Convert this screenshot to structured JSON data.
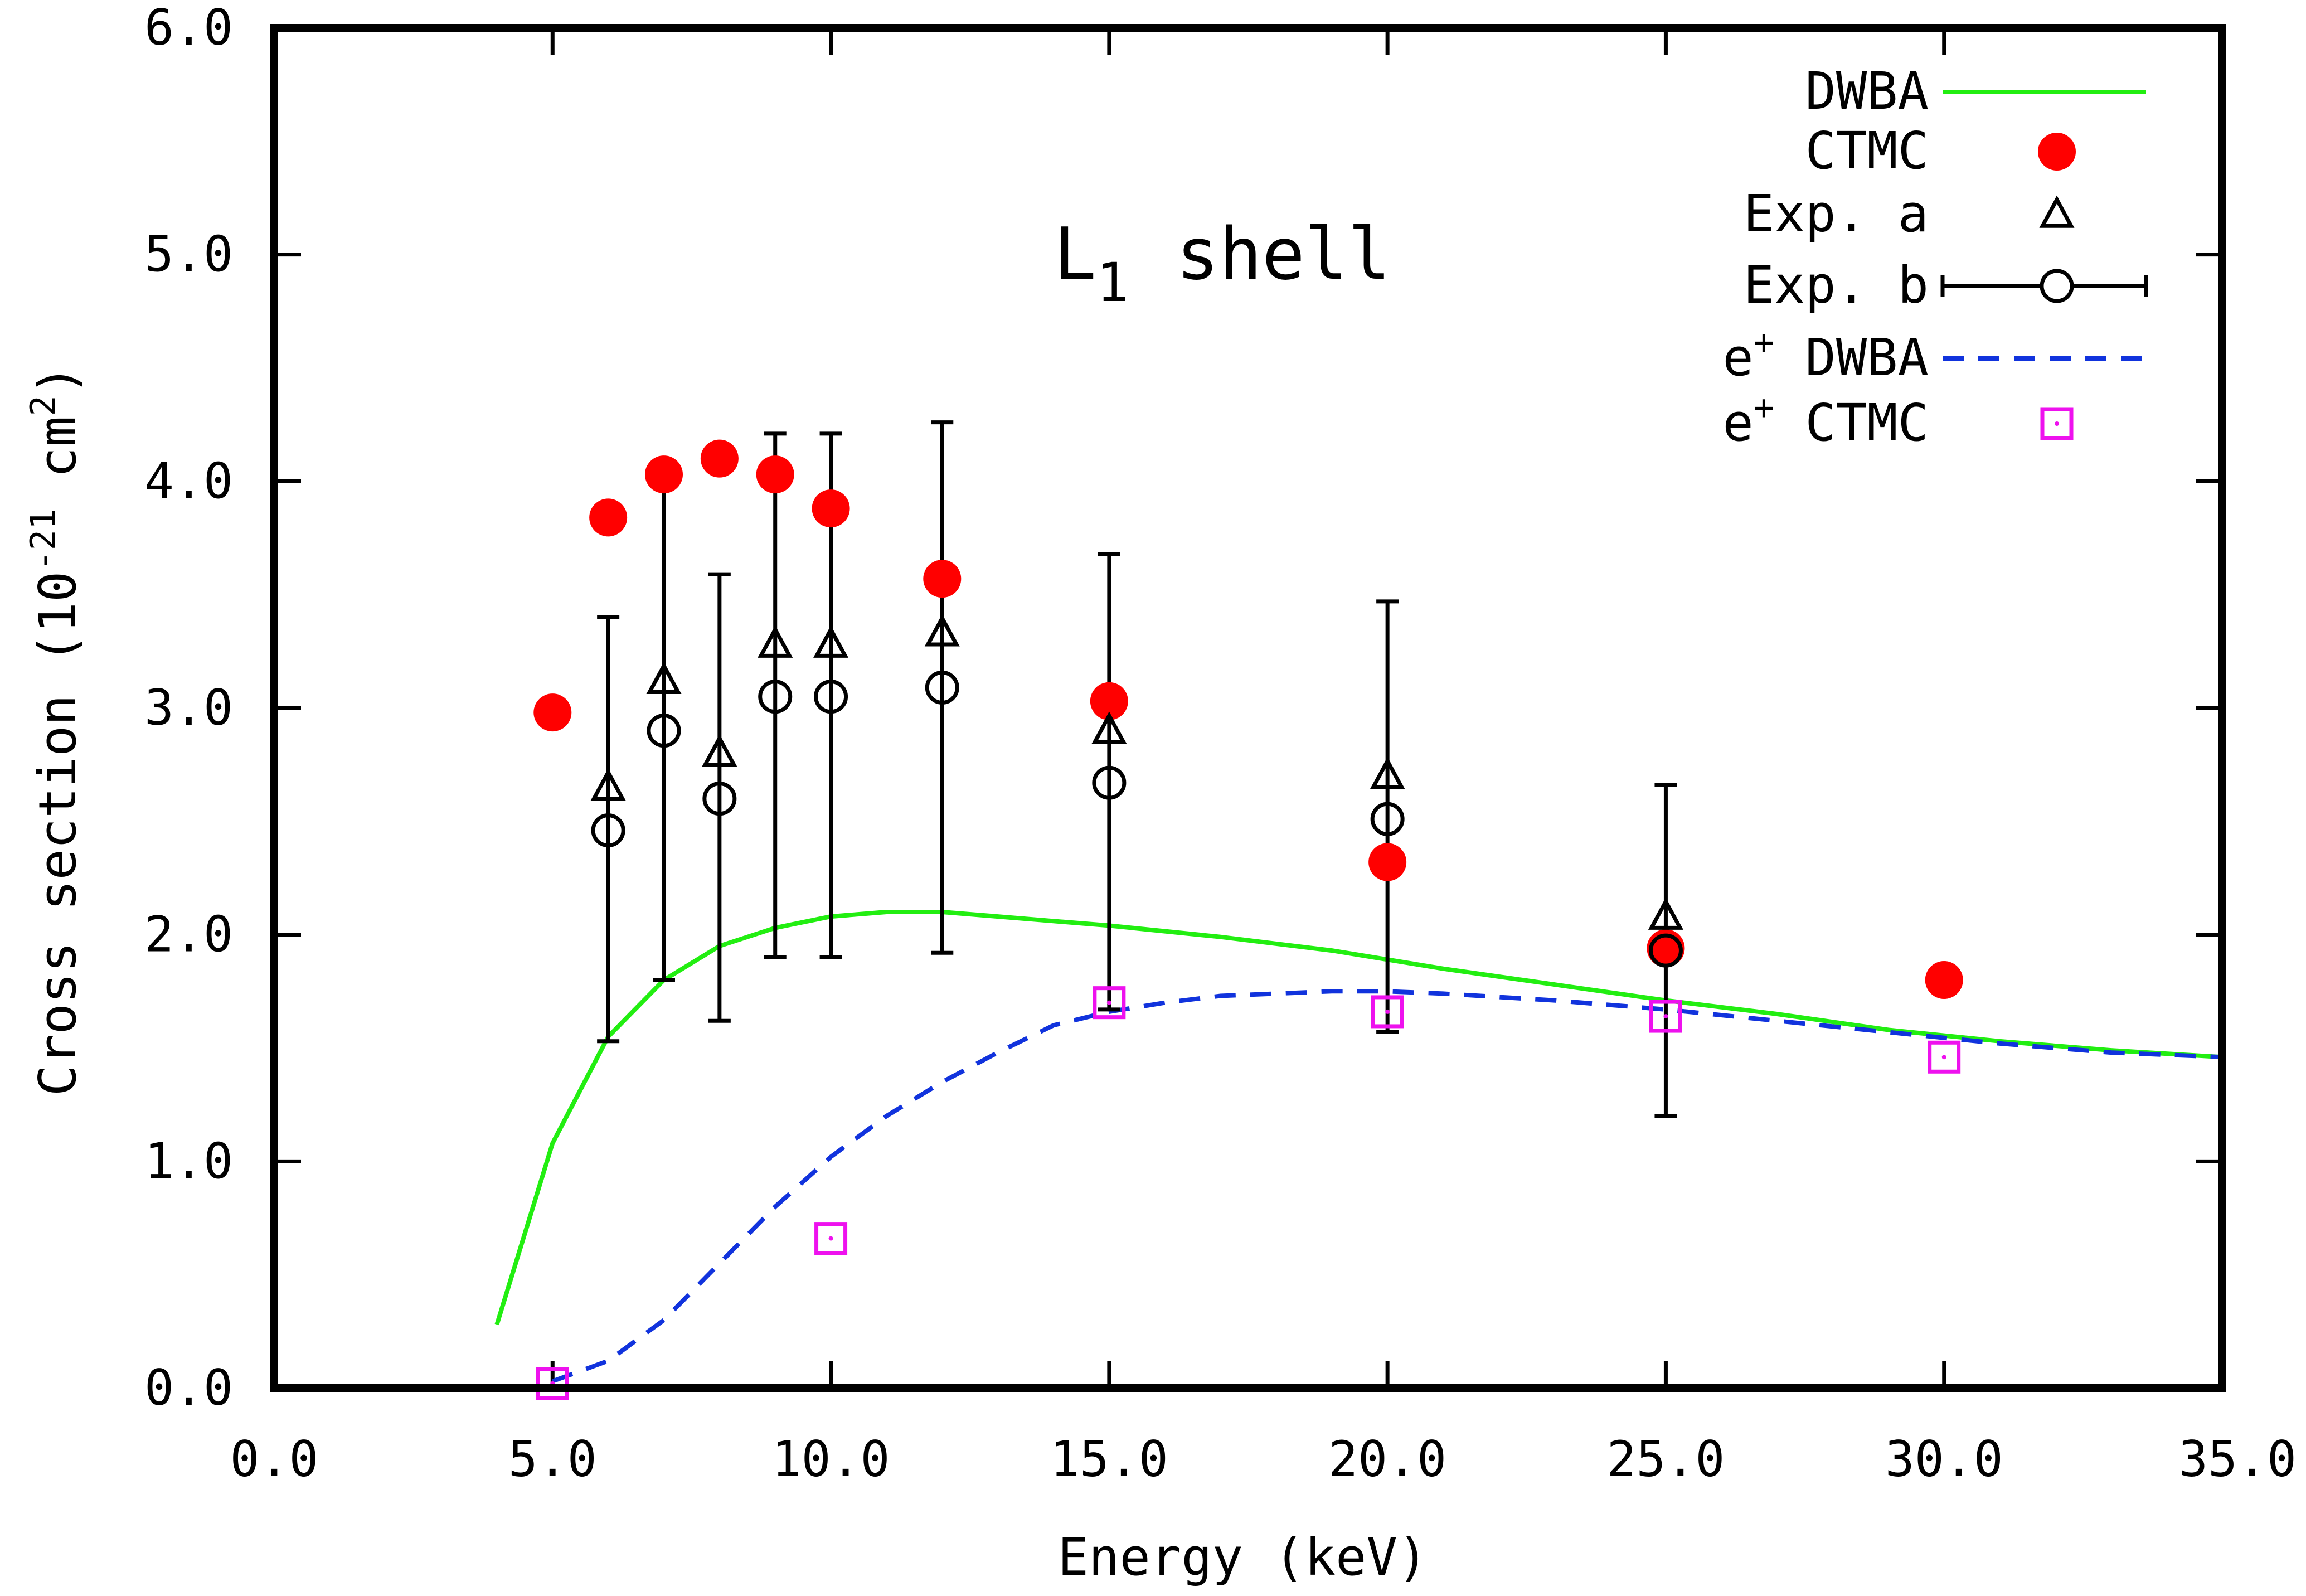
{
  "chart_data": {
    "type": "scatter",
    "title": "",
    "annotation": {
      "main": "L",
      "sub": "1",
      "rest": "shell"
    },
    "xlabel": "Energy (keV)",
    "ylabel": {
      "prefix": "Cross section (10",
      "exp1": "-21",
      "mid": " cm",
      "exp2": "2",
      "suffix": ")"
    },
    "xlim": [
      0,
      35
    ],
    "ylim": [
      0,
      6
    ],
    "x_ticks": [
      0,
      5,
      10,
      15,
      20,
      25,
      30,
      35
    ],
    "x_tick_labels": [
      "0.0",
      "5.0",
      "10.0",
      "15.0",
      "20.0",
      "25.0",
      "30.0",
      "35.0"
    ],
    "y_ticks": [
      0,
      1,
      2,
      3,
      4,
      5,
      6
    ],
    "y_tick_labels": [
      "0.0",
      "1.0",
      "2.0",
      "3.0",
      "4.0",
      "5.0",
      "6.0"
    ],
    "grid": false,
    "legend_position": "top-right",
    "series": [
      {
        "name": "DWBA",
        "key": "dwba",
        "style": "line",
        "color": "#22ee11",
        "x": [
          4,
          5,
          6,
          7,
          8,
          9,
          10,
          11,
          12,
          13,
          14,
          15,
          17,
          19,
          21,
          23,
          25,
          27,
          29,
          31,
          33,
          35
        ],
        "y": [
          0.28,
          1.08,
          1.55,
          1.8,
          1.95,
          2.03,
          2.08,
          2.1,
          2.1,
          2.08,
          2.06,
          2.04,
          1.99,
          1.93,
          1.85,
          1.78,
          1.71,
          1.65,
          1.58,
          1.53,
          1.49,
          1.46
        ]
      },
      {
        "name": "CTMC",
        "key": "ctmc",
        "style": "filled-circle",
        "color": "#ff0000",
        "x": [
          5,
          6,
          7,
          8,
          9,
          10,
          12,
          15,
          20,
          25,
          30
        ],
        "y": [
          2.98,
          3.84,
          4.03,
          4.1,
          4.03,
          3.88,
          3.57,
          3.03,
          2.32,
          1.94,
          1.8
        ]
      },
      {
        "name": "Exp. a",
        "key": "expa",
        "style": "open-triangle",
        "color": "#000000",
        "x": [
          6,
          7,
          8,
          9,
          10,
          12,
          15,
          20,
          25
        ],
        "y": [
          2.65,
          3.12,
          2.8,
          3.28,
          3.28,
          3.33,
          2.9,
          2.7,
          2.08
        ]
      },
      {
        "name": "Exp. b",
        "key": "expb",
        "style": "open-circle-errorbar",
        "color": "#000000",
        "x": [
          6,
          7,
          8,
          9,
          10,
          12,
          15,
          20,
          25
        ],
        "y": [
          2.46,
          2.9,
          2.6,
          3.05,
          3.05,
          3.09,
          2.67,
          2.51,
          1.93
        ],
        "err_low": [
          1.53,
          1.8,
          1.62,
          1.9,
          1.9,
          1.92,
          1.67,
          1.57,
          1.2
        ],
        "err_high": [
          3.4,
          3.99,
          3.59,
          4.21,
          4.21,
          4.26,
          3.68,
          3.47,
          2.66
        ]
      },
      {
        "name": "DWBA",
        "name_prefix": "e",
        "name_sup": "+",
        "key": "epdwba",
        "style": "dashed-line",
        "color": "#1133dd",
        "x": [
          5,
          6,
          7,
          8,
          9,
          10,
          11,
          12,
          13,
          14,
          15,
          16,
          17,
          18,
          19,
          20,
          21,
          23,
          25,
          27,
          29,
          31,
          33,
          35
        ],
        "y": [
          0.03,
          0.12,
          0.3,
          0.55,
          0.8,
          1.02,
          1.2,
          1.35,
          1.48,
          1.6,
          1.66,
          1.7,
          1.73,
          1.74,
          1.75,
          1.75,
          1.74,
          1.71,
          1.67,
          1.62,
          1.57,
          1.52,
          1.48,
          1.46
        ]
      },
      {
        "name": "CTMC",
        "name_prefix": "e",
        "name_sup": "+",
        "key": "epctmc",
        "style": "open-square-dot",
        "color": "#ee11ee",
        "x": [
          5,
          10,
          15,
          20,
          25,
          30
        ],
        "y": [
          0.02,
          0.66,
          1.7,
          1.66,
          1.64,
          1.46
        ]
      }
    ]
  }
}
